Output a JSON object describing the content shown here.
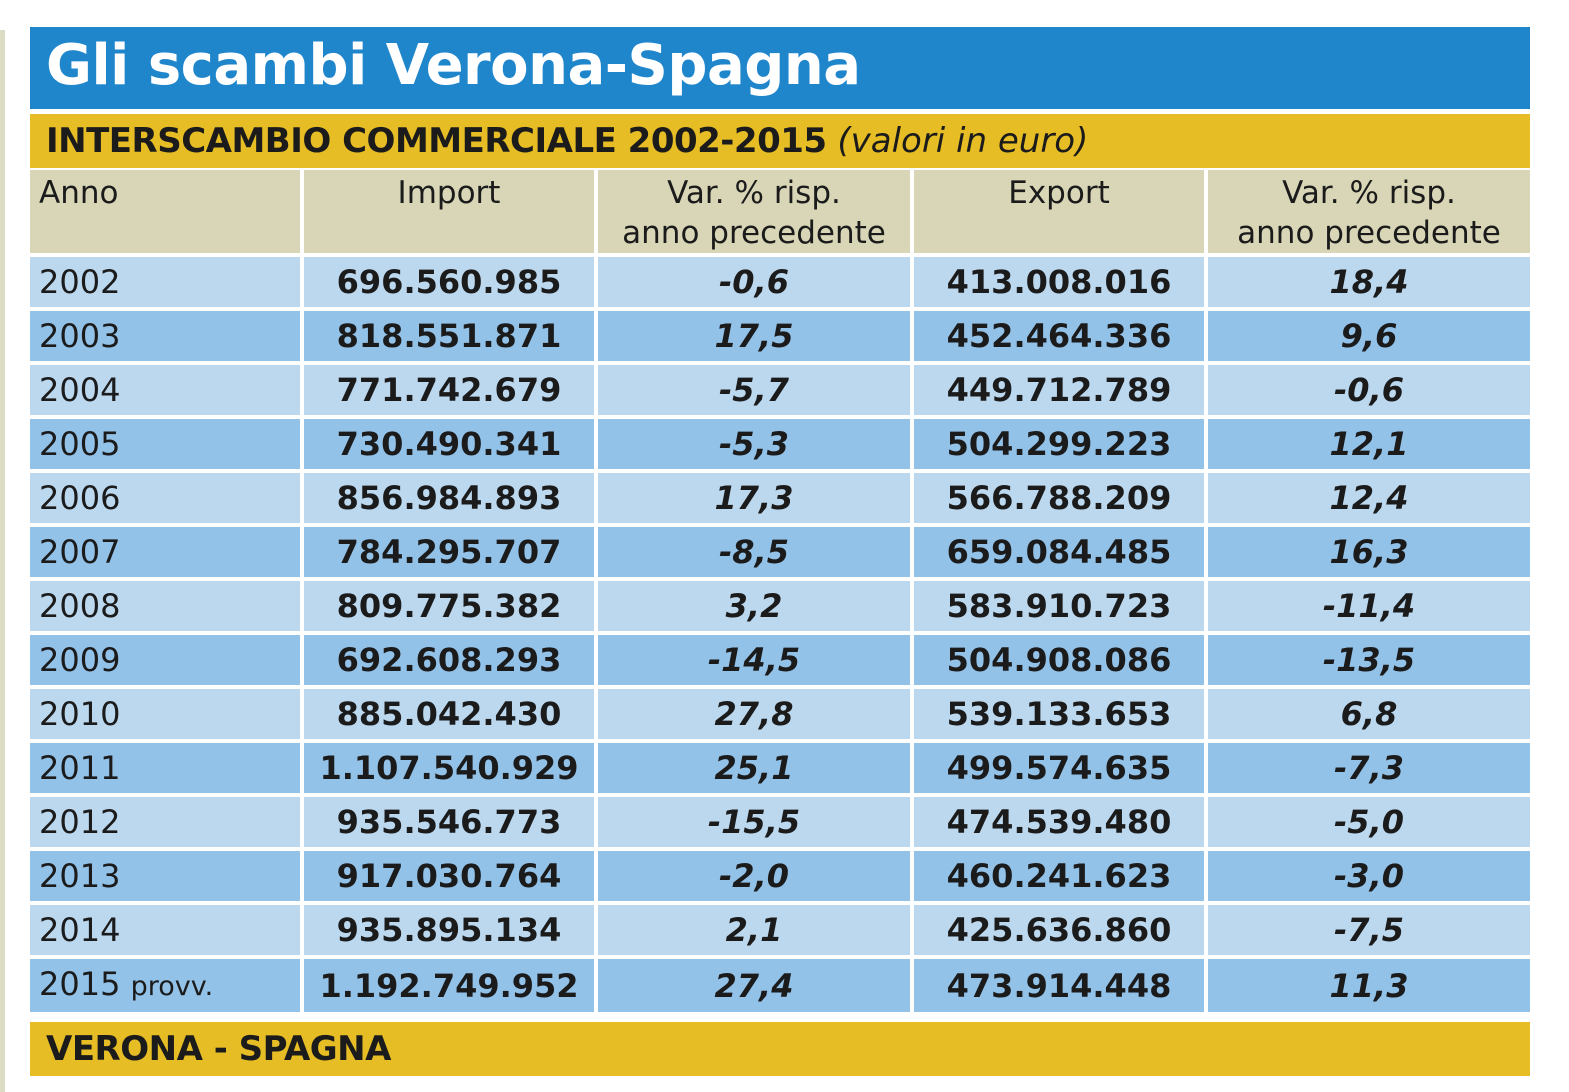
{
  "title": "Gli scambi Verona-Spagna",
  "subtitle": {
    "main": "INTERSCAMBIO COMMERCIALE 2002-2015",
    "note": "(valori in euro)"
  },
  "table": {
    "headers": {
      "year": "Anno",
      "import": "Import",
      "import_var_line1": "Var. % risp.",
      "import_var_line2": "anno precedente",
      "export": "Export",
      "export_var_line1": "Var. % risp.",
      "export_var_line2": "anno precedente"
    },
    "rows": [
      {
        "year": "2002",
        "note": "",
        "import": "696.560.985",
        "import_var": "-0,6",
        "export": "413.008.016",
        "export_var": "18,4"
      },
      {
        "year": "2003",
        "note": "",
        "import": "818.551.871",
        "import_var": "17,5",
        "export": "452.464.336",
        "export_var": "9,6"
      },
      {
        "year": "2004",
        "note": "",
        "import": "771.742.679",
        "import_var": "-5,7",
        "export": "449.712.789",
        "export_var": "-0,6"
      },
      {
        "year": "2005",
        "note": "",
        "import": "730.490.341",
        "import_var": "-5,3",
        "export": "504.299.223",
        "export_var": "12,1"
      },
      {
        "year": "2006",
        "note": "",
        "import": "856.984.893",
        "import_var": "17,3",
        "export": "566.788.209",
        "export_var": "12,4"
      },
      {
        "year": "2007",
        "note": "",
        "import": "784.295.707",
        "import_var": "-8,5",
        "export": "659.084.485",
        "export_var": "16,3"
      },
      {
        "year": "2008",
        "note": "",
        "import": "809.775.382",
        "import_var": "3,2",
        "export": "583.910.723",
        "export_var": "-11,4"
      },
      {
        "year": "2009",
        "note": "",
        "import": "692.608.293",
        "import_var": "-14,5",
        "export": "504.908.086",
        "export_var": "-13,5"
      },
      {
        "year": "2010",
        "note": "",
        "import": "885.042.430",
        "import_var": "27,8",
        "export": "539.133.653",
        "export_var": "6,8"
      },
      {
        "year": "2011",
        "note": "",
        "import": "1.107.540.929",
        "import_var": "25,1",
        "export": "499.574.635",
        "export_var": "-7,3"
      },
      {
        "year": "2012",
        "note": "",
        "import": "935.546.773",
        "import_var": "-15,5",
        "export": "474.539.480",
        "export_var": "-5,0"
      },
      {
        "year": "2013",
        "note": "",
        "import": "917.030.764",
        "import_var": "-2,0",
        "export": "460.241.623",
        "export_var": "-3,0"
      },
      {
        "year": "2014",
        "note": "",
        "import": "935.895.134",
        "import_var": "2,1",
        "export": "425.636.860",
        "export_var": "-7,5"
      },
      {
        "year": "2015",
        "note": "provv.",
        "import": "1.192.749.952",
        "import_var": "27,4",
        "export": "473.914.448",
        "export_var": "11,3"
      }
    ]
  },
  "footer": "VERONA - SPAGNA",
  "colors": {
    "title_bar": "#1f86cc",
    "accent_bar": "#e6bd25",
    "header_row": "#d8d6b6",
    "row_light": "#bcd8ef",
    "row_dark": "#93c2e9"
  }
}
